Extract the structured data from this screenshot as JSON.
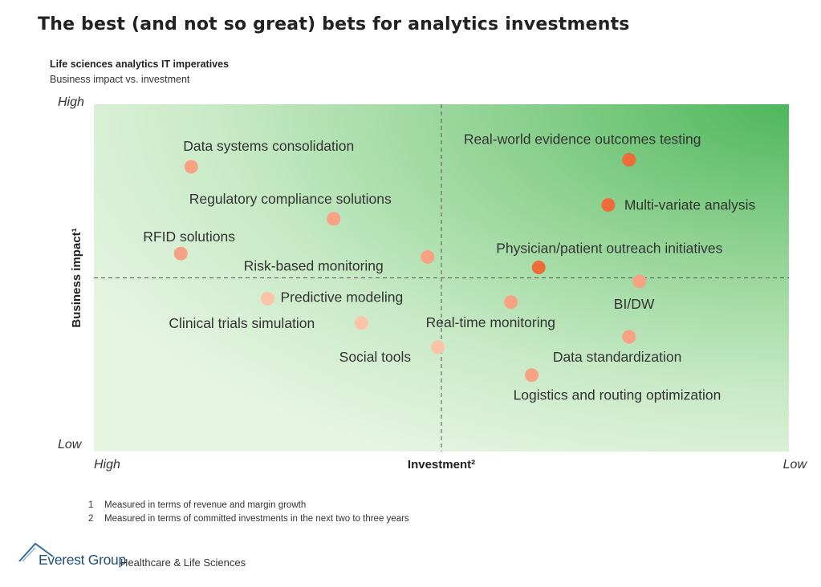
{
  "page": {
    "title": "The best (and not so great) bets for analytics investments",
    "subtitle": "Life sciences analytics IT imperatives",
    "subtitle2": "Business impact vs. investment"
  },
  "chart_data": {
    "type": "scatter",
    "xlabel": "Investment²",
    "ylabel": "Business impact¹",
    "x_low_label": "High",
    "x_high_label": "Low",
    "y_low_label": "Low",
    "y_high_label": "High",
    "xlim": [
      0,
      100
    ],
    "ylim": [
      0,
      100
    ],
    "divider_x": 50,
    "divider_y": 50,
    "points": [
      {
        "label": "Data systems consolidation",
        "x": 14,
        "y": 82,
        "color": "#f7a383"
      },
      {
        "label": "Regulatory compliance solutions",
        "x": 34.5,
        "y": 67,
        "color": "#f7a383"
      },
      {
        "label": "RFID solutions",
        "x": 12.5,
        "y": 57,
        "color": "#f7a383"
      },
      {
        "label": "Risk-based monitoring",
        "x": 48,
        "y": 56,
        "color": "#f7a383"
      },
      {
        "label": "Predictive modeling",
        "x": 25,
        "y": 44,
        "color": "#fbc4a8"
      },
      {
        "label": "Clinical trials simulation",
        "x": 38.5,
        "y": 37,
        "color": "#fbc4a8"
      },
      {
        "label": "Social tools",
        "x": 49.5,
        "y": 30,
        "color": "#fbc4a8"
      },
      {
        "label": "Real-time monitoring",
        "x": 60,
        "y": 43,
        "color": "#f7a383"
      },
      {
        "label": "Real-world evidence outcomes testing",
        "x": 77,
        "y": 84,
        "color": "#ee6c3a"
      },
      {
        "label": "Multi-variate analysis",
        "x": 74,
        "y": 71,
        "color": "#ee6c3a"
      },
      {
        "label": "Physician/patient outreach initiatives",
        "x": 64,
        "y": 53,
        "color": "#ee6c3a"
      },
      {
        "label": "BI/DW",
        "x": 78.5,
        "y": 49,
        "color": "#f7a383"
      },
      {
        "label": "Data standardization",
        "x": 77,
        "y": 33,
        "color": "#f7a383"
      },
      {
        "label": "Logistics and routing optimization",
        "x": 63,
        "y": 22,
        "color": "#f7a383"
      }
    ]
  },
  "footnotes": [
    {
      "num": "1",
      "text": "Measured in terms of revenue and margin growth"
    },
    {
      "num": "2",
      "text": "Measured in terms of committed investments in the next two to three years"
    }
  ],
  "logo": {
    "brand": "Everest Group",
    "division": "Healthcare & Life Sciences"
  }
}
